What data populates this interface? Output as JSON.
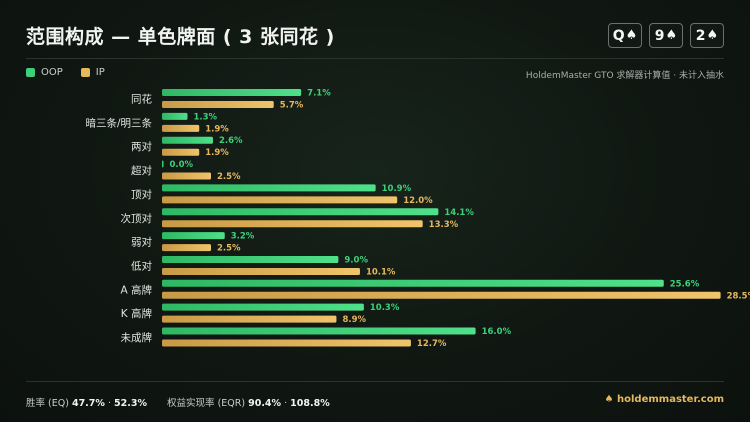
{
  "header": {
    "title": "范围构成 — 单色牌面 ( 3 张同花 )",
    "board": [
      {
        "rank": "Q",
        "suit": "♠"
      },
      {
        "rank": "9",
        "suit": "♠"
      },
      {
        "rank": "2",
        "suit": "♠"
      }
    ]
  },
  "legend": {
    "oop_label": "OOP",
    "ip_label": "IP",
    "source": "HoldemMaster GTO 求解器计算值 · 未计入抽水"
  },
  "colors": {
    "oop": "#3dd07a",
    "ip": "#e6b85c"
  },
  "chart_data": {
    "type": "bar",
    "orientation": "horizontal",
    "categories": [
      "同花",
      "暗三条/明三条",
      "两对",
      "超对",
      "顶对",
      "次顶对",
      "弱对",
      "低对",
      "A 高牌",
      "K 高牌",
      "未成牌"
    ],
    "series": [
      {
        "name": "OOP",
        "values": [
          7.1,
          1.3,
          2.6,
          0.0,
          10.9,
          14.1,
          3.2,
          9.0,
          25.6,
          10.3,
          16.0
        ]
      },
      {
        "name": "IP",
        "values": [
          5.7,
          1.9,
          1.9,
          2.5,
          12.0,
          13.3,
          2.5,
          10.1,
          28.5,
          8.9,
          12.7
        ]
      }
    ],
    "value_suffix": "%",
    "xlim": [
      0,
      30
    ],
    "grid": false,
    "legend_position": "top-left"
  },
  "footer": {
    "eq_label": "胜率 (EQ)",
    "eq_oop": "47.7%",
    "eq_sep": "·",
    "eq_ip": "52.3%",
    "eqr_label": "权益实现率 (EQR)",
    "eqr_oop": "90.4%",
    "eqr_sep": "·",
    "eqr_ip": "108.8%",
    "site": "♠ holdemmaster.com"
  }
}
